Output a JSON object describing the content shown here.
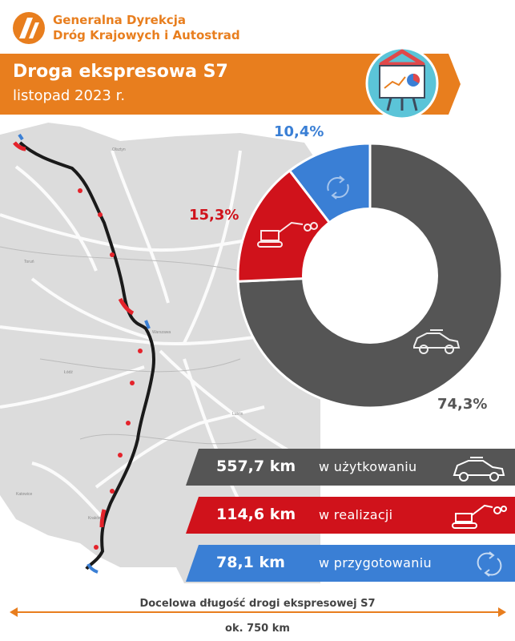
{
  "organization": {
    "line1": "Generalna Dyrekcja",
    "line2": "Dróg Krajowych i Autostrad"
  },
  "header": {
    "title": "Droga ekspresowa S7",
    "date": "listopad 2023 r."
  },
  "chart_data": {
    "type": "pie",
    "slices": [
      {
        "label": "w użytkowaniu",
        "value": 74.3,
        "display": "74,3%",
        "color": "#555555"
      },
      {
        "label": "w realizacji",
        "value": 15.3,
        "display": "15,3%",
        "color": "#D0121B"
      },
      {
        "label": "w przygotowaniu",
        "value": 10.4,
        "display": "10,4%",
        "color": "#3A7FD5"
      }
    ]
  },
  "stats": [
    {
      "value": "557,7 km",
      "label": "w użytkowaniu",
      "color": "#555555",
      "icon": "car-icon"
    },
    {
      "value": "114,6 km",
      "label": "w realizacji",
      "color": "#D0121B",
      "icon": "excavator-icon"
    },
    {
      "value": "78,1 km",
      "label": "w przygotowaniu",
      "color": "#3A7FD5",
      "icon": "refresh-icon"
    }
  ],
  "footer": {
    "caption": "Docelowa długość drogi ekspresowej S7",
    "length": "ok. 750 km"
  },
  "colors": {
    "brand_orange": "#E87E1E",
    "gray": "#555555",
    "red": "#D0121B",
    "blue": "#3A7FD5"
  }
}
